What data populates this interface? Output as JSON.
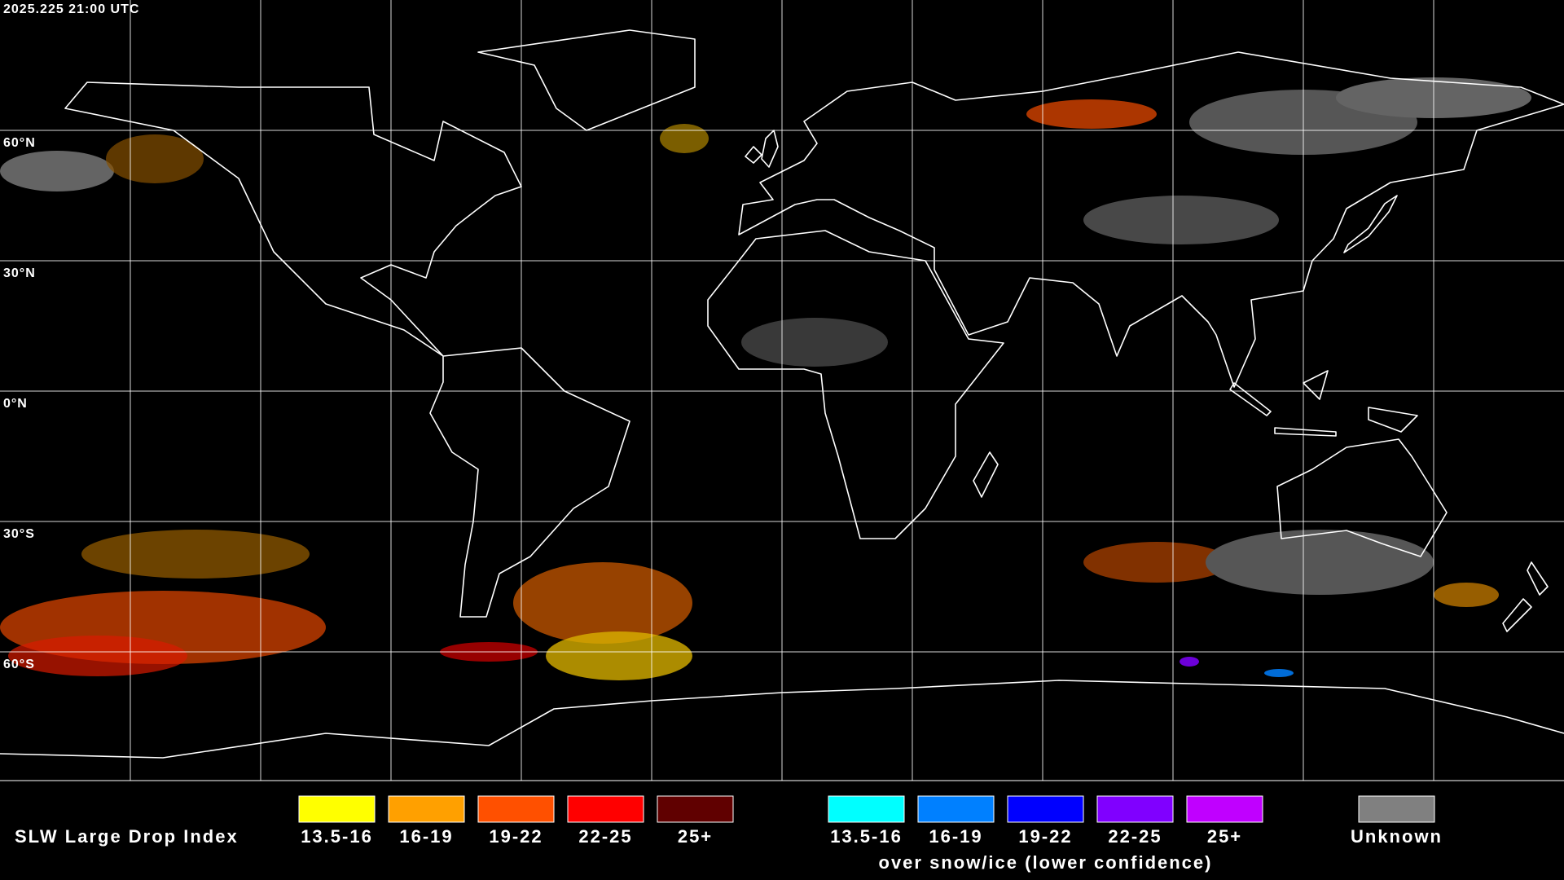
{
  "header": {
    "timestamp": "2025.225 21:00 UTC"
  },
  "map": {
    "latitude_labels": [
      "60°N",
      "30°N",
      "0°N",
      "30°S",
      "60°S"
    ]
  },
  "legend": {
    "title": "SLW Large Drop Index",
    "groups": [
      {
        "items": [
          {
            "label": "13.5-16",
            "color": "#ffff00"
          },
          {
            "label": "16-19",
            "color": "#ffa000"
          },
          {
            "label": "19-22",
            "color": "#ff5000"
          },
          {
            "label": "22-25",
            "color": "#ff0000"
          },
          {
            "label": "25+",
            "color": "#600000"
          }
        ]
      },
      {
        "items": [
          {
            "label": "13.5-16",
            "color": "#00ffff"
          },
          {
            "label": "16-19",
            "color": "#0080ff"
          },
          {
            "label": "19-22",
            "color": "#0000ff"
          },
          {
            "label": "22-25",
            "color": "#8000ff"
          },
          {
            "label": "25+",
            "color": "#c000ff"
          }
        ],
        "note": "over snow/ice (lower confidence)"
      }
    ],
    "unknown": {
      "label": "Unknown",
      "color": "#808080"
    }
  }
}
